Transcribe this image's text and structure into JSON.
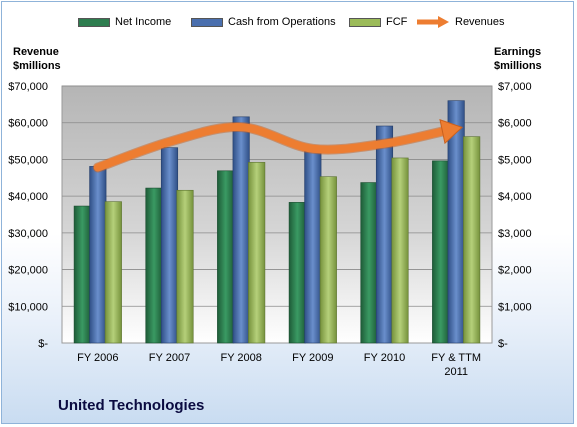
{
  "legend": {
    "net_income": "Net Income",
    "cfo": "Cash from Operations",
    "fcf": "FCF",
    "revenues": "Revenues"
  },
  "axis": {
    "left_title_line1": "Revenue",
    "left_title_line2": "$millions",
    "right_title_line1": "Earnings",
    "right_title_line2": "$millions"
  },
  "company": "United Technologies",
  "colors": {
    "net_income": "#2e7d4f",
    "cfo": "#4a6fae",
    "fcf": "#9bbb59",
    "revenues": "#ed7d31",
    "plot_bg_top": "#b8b8b8",
    "plot_bg_bottom": "#ffffff"
  },
  "chart_data": {
    "type": "bar",
    "categories": [
      "FY 2006",
      "FY 2007",
      "FY 2008",
      "FY 2009",
      "FY 2010",
      "FY & TTM\n2011"
    ],
    "series": [
      {
        "name": "Net Income",
        "axis": "right",
        "values": [
          3730,
          4220,
          4690,
          3830,
          4370,
          4960
        ]
      },
      {
        "name": "Cash from Operations",
        "axis": "right",
        "values": [
          4810,
          5320,
          6160,
          5360,
          5910,
          6600
        ]
      },
      {
        "name": "FCF",
        "axis": "right",
        "values": [
          3850,
          4160,
          4920,
          4530,
          5040,
          5620
        ]
      },
      {
        "name": "Revenues",
        "type": "line",
        "axis": "left",
        "values": [
          47800,
          54800,
          58800,
          52900,
          54300,
          58400
        ]
      }
    ],
    "left_axis": {
      "ylim": [
        0,
        70000
      ],
      "ticks": [
        "$-",
        "$10,000",
        "$20,000",
        "$30,000",
        "$40,000",
        "$50,000",
        "$60,000",
        "$70,000"
      ]
    },
    "right_axis": {
      "ylim": [
        0,
        7000
      ],
      "ticks": [
        "$-",
        "$1,000",
        "$2,000",
        "$3,000",
        "$4,000",
        "$5,000",
        "$6,000",
        "$7,000"
      ]
    },
    "grid": true,
    "legend_position": "top"
  }
}
